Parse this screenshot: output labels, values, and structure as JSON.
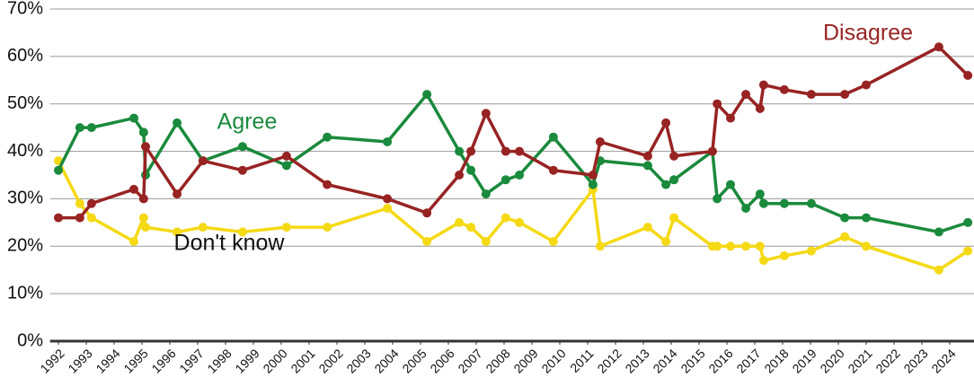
{
  "chart_data": {
    "type": "line",
    "x": [
      1992.0,
      1992.77,
      1993.19,
      1994.71,
      1995.06,
      1995.13,
      1996.26,
      1997.19,
      1998.61,
      2000.19,
      2001.65,
      2003.81,
      2005.23,
      2006.39,
      2006.81,
      2007.35,
      2008.06,
      2008.55,
      2009.77,
      2011.19,
      2011.45,
      2013.16,
      2013.81,
      2014.1,
      2015.48,
      2015.65,
      2016.13,
      2016.68,
      2017.19,
      2017.32,
      2018.06,
      2019.03,
      2020.23,
      2021.0,
      2023.61,
      2024.65
    ],
    "series": [
      {
        "name": "Don't know",
        "color": "#f5d914",
        "values": [
          38,
          29,
          26,
          21,
          26,
          24,
          23,
          24,
          23,
          24,
          24,
          28,
          21,
          25,
          24,
          21,
          26,
          25,
          21,
          32,
          20,
          24,
          21,
          26,
          20,
          20,
          20,
          20,
          20,
          17,
          18,
          19,
          22,
          20,
          15,
          19
        ]
      },
      {
        "name": "Agree",
        "color": "#1a8a3c",
        "values": [
          36,
          45,
          45,
          47,
          44,
          35,
          46,
          38,
          41,
          37,
          43,
          42,
          52,
          40,
          36,
          31,
          34,
          35,
          43,
          33,
          38,
          37,
          33,
          34,
          40,
          30,
          33,
          28,
          31,
          29,
          29,
          29,
          26,
          26,
          23,
          25
        ]
      },
      {
        "name": "Disagree",
        "color": "#982323",
        "values": [
          26,
          26,
          29,
          32,
          30,
          41,
          31,
          38,
          36,
          39,
          33,
          30,
          27,
          35,
          40,
          48,
          40,
          40,
          36,
          35,
          42,
          39,
          46,
          39,
          40,
          50,
          47,
          52,
          49,
          54,
          53,
          52,
          52,
          54,
          62,
          56
        ]
      }
    ],
    "xlim": [
      1991.7,
      2024.85
    ],
    "xticks": [
      1992,
      1993,
      1994,
      1995,
      1996,
      1997,
      1998,
      1999,
      2000,
      2001,
      2002,
      2003,
      2004,
      2005,
      2006,
      2007,
      2008,
      2009,
      2010,
      2011,
      2012,
      2013,
      2014,
      2015,
      2016,
      2017,
      2018,
      2019,
      2020,
      2021,
      2022,
      2023,
      2024
    ],
    "ylim": [
      0,
      70
    ],
    "yticks": [
      {
        "value": 0,
        "label": "0%"
      },
      {
        "value": 10,
        "label": "10%"
      },
      {
        "value": 20,
        "label": "20%"
      },
      {
        "value": 30,
        "label": "30%"
      },
      {
        "value": 40,
        "label": "40%"
      },
      {
        "value": 50,
        "label": "50%"
      },
      {
        "value": 60,
        "label": "60%"
      },
      {
        "value": 70,
        "label": "70%"
      }
    ],
    "grid": true
  }
}
